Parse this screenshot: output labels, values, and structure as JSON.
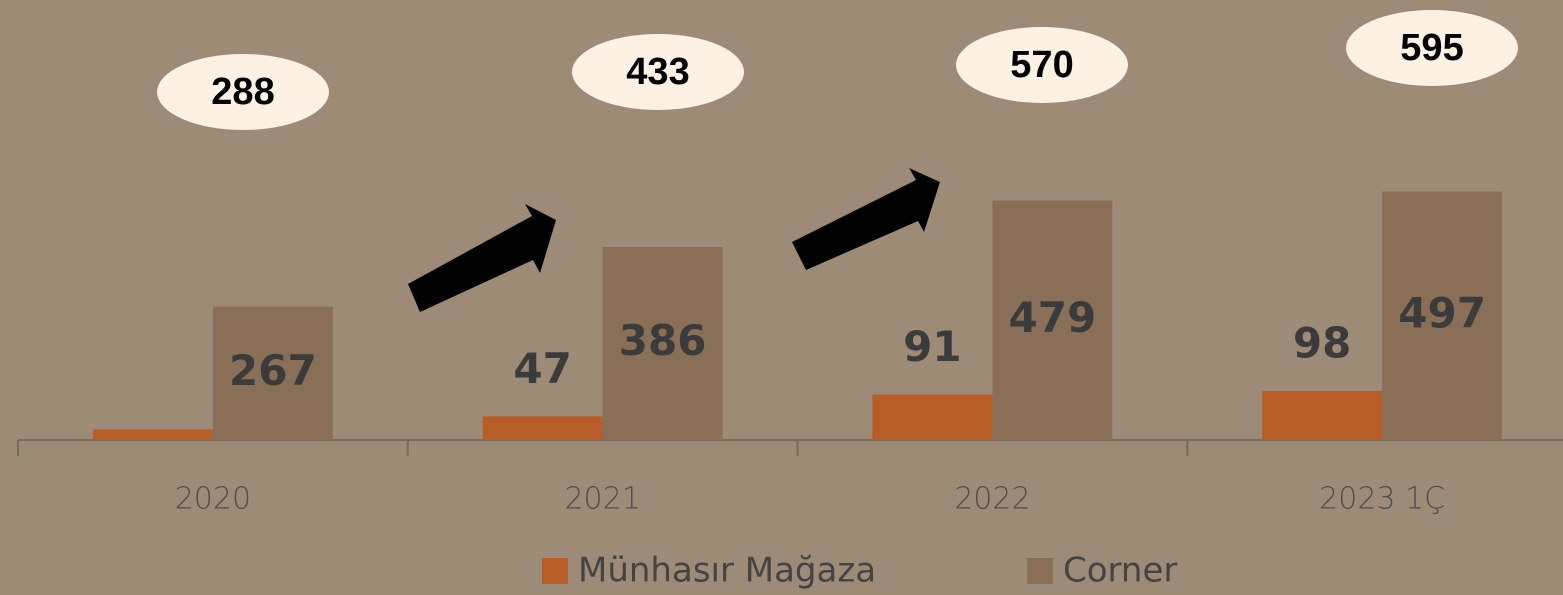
{
  "chart_data": {
    "type": "bar",
    "categories": [
      "2020",
      "2021",
      "2022",
      "2023 1Ç"
    ],
    "series": [
      {
        "name": "Münhasır Mağaza",
        "color": "#b85c28",
        "values": [
          21,
          47,
          91,
          98
        ],
        "value_labels": [
          null,
          "47",
          "91",
          "98"
        ]
      },
      {
        "name": "Corner",
        "color": "#8a6f58",
        "values": [
          267,
          386,
          479,
          497
        ]
      }
    ],
    "annotations": [
      "288",
      "433",
      "570",
      "595"
    ],
    "ylim": [
      0,
      880
    ]
  }
}
